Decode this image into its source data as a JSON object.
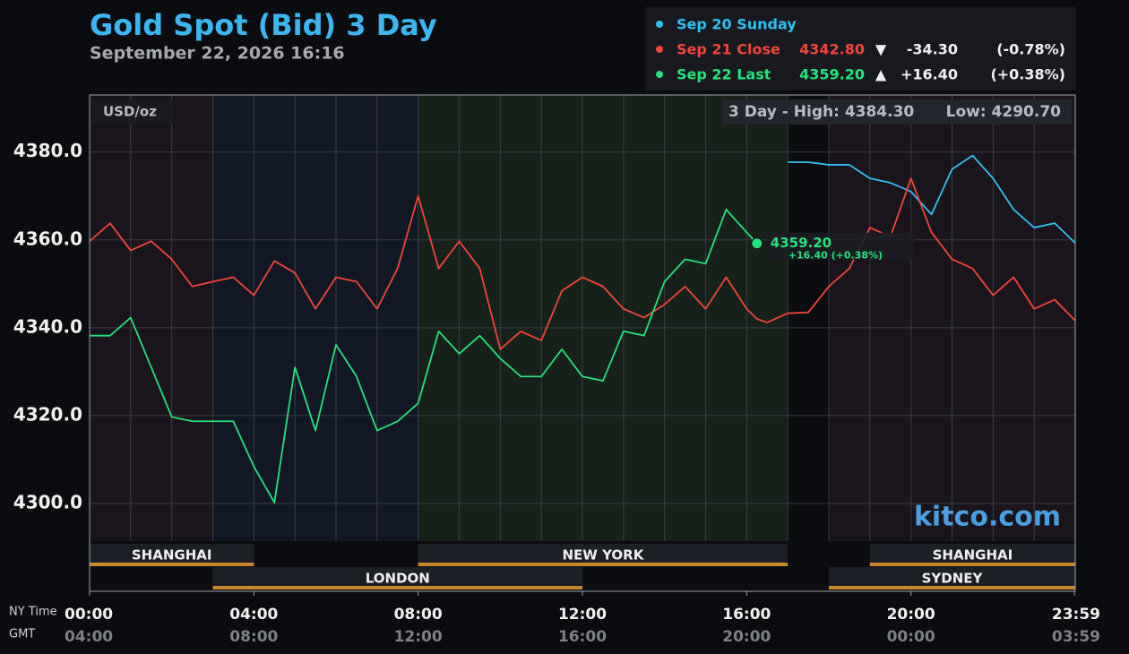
{
  "chart_data": {
    "type": "line",
    "title": "Gold Spot (Bid) 3 Day",
    "subtitle": "September 22, 2026 16:16",
    "unit_label": "USD/oz",
    "high_label": "3 Day - High: 4384.30",
    "low_label": "Low: 4290.70",
    "watermark": "kitco.com",
    "x_axis_label": "NY Time",
    "x2_axis_label": "GMT",
    "xlim": [
      0,
      24
    ],
    "ylim": [
      4280,
      4393
    ],
    "grid": true,
    "xticks": [
      {
        "value": 0,
        "label": "00:00"
      },
      {
        "value": 4,
        "label": "04:00"
      },
      {
        "value": 8,
        "label": "08:00"
      },
      {
        "value": 12,
        "label": "12:00"
      },
      {
        "value": 16,
        "label": "16:00"
      },
      {
        "value": 20,
        "label": "20:00"
      },
      {
        "value": 23.98,
        "label": "23:59"
      }
    ],
    "gmt_labels": [
      "04:00",
      "08:00",
      "12:00",
      "16:00",
      "20:00",
      "00:00",
      "03:59"
    ],
    "yticks": [
      {
        "value": 4300,
        "label": "4300.0"
      },
      {
        "value": 4320,
        "label": "4320.0"
      },
      {
        "value": 4340,
        "label": "4340.0"
      },
      {
        "value": 4360,
        "label": "4360.0"
      },
      {
        "value": 4380,
        "label": "4380.0"
      }
    ],
    "x": [
      0,
      0.5,
      1,
      1.5,
      2,
      2.5,
      3,
      3.5,
      4,
      4.5,
      5,
      5.5,
      6,
      6.5,
      7,
      7.5,
      8,
      8.5,
      9,
      9.5,
      10,
      10.5,
      11,
      11.5,
      12,
      12.5,
      13,
      13.5,
      14,
      14.5,
      15,
      15.5,
      16,
      16.25,
      16.5,
      17,
      17.5,
      18,
      18.5,
      19,
      19.5,
      20,
      20.5,
      21,
      21.5,
      22,
      22.5,
      23,
      23.5,
      24
    ],
    "series": [
      {
        "name": "Sep 20 Sunday",
        "color": "#2fc0f2",
        "values": [
          null,
          null,
          null,
          null,
          null,
          null,
          null,
          null,
          null,
          null,
          null,
          null,
          null,
          null,
          null,
          null,
          null,
          null,
          null,
          null,
          null,
          null,
          null,
          null,
          null,
          null,
          null,
          null,
          null,
          null,
          null,
          null,
          null,
          null,
          null,
          4377.7,
          4377.7,
          4377.1,
          4377.1,
          4374,
          4373,
          4371,
          4365.8,
          4376.1,
          4379.2,
          4374,
          4366.9,
          4362.8,
          4363.8,
          4359.3
        ]
      },
      {
        "name": "Sep 21 Close",
        "color": "#f2453a",
        "price_label": "4342.80",
        "direction": "▼",
        "change_label": "-34.30",
        "pct_label": "(-0.78%)",
        "values": [
          4359.7,
          4363.8,
          4357.6,
          4359.7,
          4355.6,
          4349.4,
          4350.5,
          4351.5,
          4347.4,
          4355.2,
          4352.5,
          4344.3,
          4351.5,
          4350.5,
          4344.3,
          4353.5,
          4370,
          4353.5,
          4359.7,
          4353.5,
          4335.1,
          4339.2,
          4337.1,
          4348.4,
          4351.5,
          4349.4,
          4344.3,
          4342.3,
          4345.3,
          4349.4,
          4344.3,
          4351.5,
          4344.3,
          4342,
          4341.2,
          4343.3,
          4343.5,
          4349.4,
          4353.5,
          4362.8,
          4360.7,
          4374,
          4361.7,
          4355.6,
          4353.5,
          4347.4,
          4351.5,
          4344.3,
          4346.4,
          4341.6
        ]
      },
      {
        "name": "Sep 22 Last",
        "color": "#25e27c",
        "price_label": "4359.20",
        "direction": "▲",
        "change_label": "+16.40",
        "pct_label": "(+0.38%)",
        "values": [
          4338.2,
          4338.2,
          4342.3,
          4331,
          4319.7,
          4318.7,
          4318.7,
          4318.7,
          4308.4,
          4300.2,
          4331,
          4316.6,
          4336.1,
          4328.9,
          4316.6,
          4318.7,
          4322.8,
          4339.2,
          4334.1,
          4338.2,
          4333,
          4328.9,
          4328.9,
          4335.1,
          4328.9,
          4327.9,
          4339.2,
          4338.2,
          4350.5,
          4355.6,
          4354.6,
          4366.9,
          4361.7,
          4359.2,
          null,
          null,
          null,
          null,
          null,
          null,
          null,
          null,
          null,
          null,
          null,
          null,
          null,
          null,
          null,
          null
        ]
      }
    ],
    "last_price_label": "4359.20",
    "last_change_label": "+16.40 (+0.38%)",
    "sessions": [
      {
        "name": "SHANGHAI",
        "start": 0,
        "end": 4,
        "row": 1
      },
      {
        "name": "NEW YORK",
        "start": 8,
        "end": 17,
        "row": 1
      },
      {
        "name": "SHANGHAI",
        "start": 19,
        "end": 24,
        "row": 1
      },
      {
        "name": "LONDON",
        "start": 3,
        "end": 12,
        "row": 2
      },
      {
        "name": "SYDNEY",
        "start": 18,
        "end": 24,
        "row": 2
      }
    ]
  }
}
